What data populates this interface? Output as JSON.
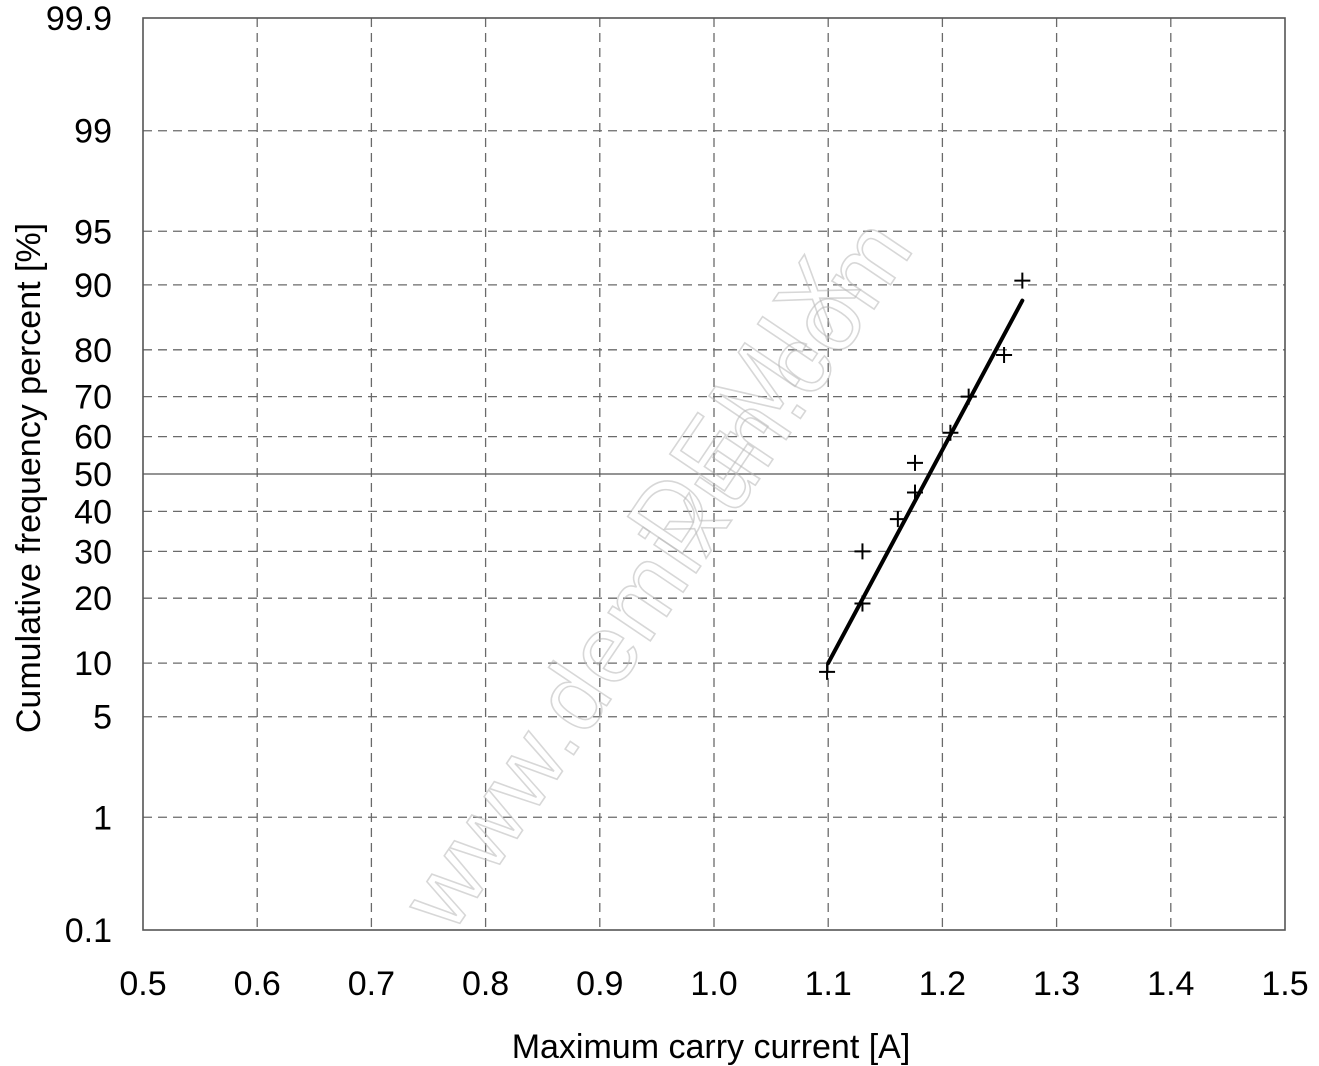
{
  "chart_data": {
    "type": "scatter",
    "xlabel": "Maximum carry current [A]",
    "ylabel": "Cumulative frequency percent [%]",
    "xlim": [
      0.5,
      1.5
    ],
    "ylim": [
      0.1,
      99.9
    ],
    "y_scale": "normal-probability",
    "grid": true,
    "x_ticks": [
      "0.5",
      "0.6",
      "0.7",
      "0.8",
      "0.9",
      "1.0",
      "1.1",
      "1.2",
      "1.3",
      "1.4",
      "1.5"
    ],
    "y_ticks": [
      {
        "label": "99.9",
        "value": 99.9
      },
      {
        "label": "99",
        "value": 99
      },
      {
        "label": "95",
        "value": 95
      },
      {
        "label": "90",
        "value": 90
      },
      {
        "label": "80",
        "value": 80
      },
      {
        "label": "70",
        "value": 70
      },
      {
        "label": "60",
        "value": 60
      },
      {
        "label": "50",
        "value": 50
      },
      {
        "label": "40",
        "value": 40
      },
      {
        "label": "30",
        "value": 30
      },
      {
        "label": "20",
        "value": 20
      },
      {
        "label": "10",
        "value": 10
      },
      {
        "label": "5",
        "value": 5
      },
      {
        "label": "1",
        "value": 1
      },
      {
        "label": "0.1",
        "value": 0.1
      }
    ],
    "series": [
      {
        "marker": "+",
        "points": [
          {
            "x": 1.099,
            "y": 9
          },
          {
            "x": 1.13,
            "y": 19
          },
          {
            "x": 1.13,
            "y": 30
          },
          {
            "x": 1.161,
            "y": 38
          },
          {
            "x": 1.176,
            "y": 45
          },
          {
            "x": 1.176,
            "y": 53
          },
          {
            "x": 1.207,
            "y": 61
          },
          {
            "x": 1.223,
            "y": 70
          },
          {
            "x": 1.254,
            "y": 79
          },
          {
            "x": 1.27,
            "y": 90.5
          }
        ]
      },
      {
        "style": "line",
        "points": [
          {
            "x": 1.1,
            "y": 10
          },
          {
            "x": 1.27,
            "y": 88
          }
        ]
      }
    ]
  },
  "watermark": {
    "line1": "DEMIX",
    "line2": "www.demixun.com"
  }
}
